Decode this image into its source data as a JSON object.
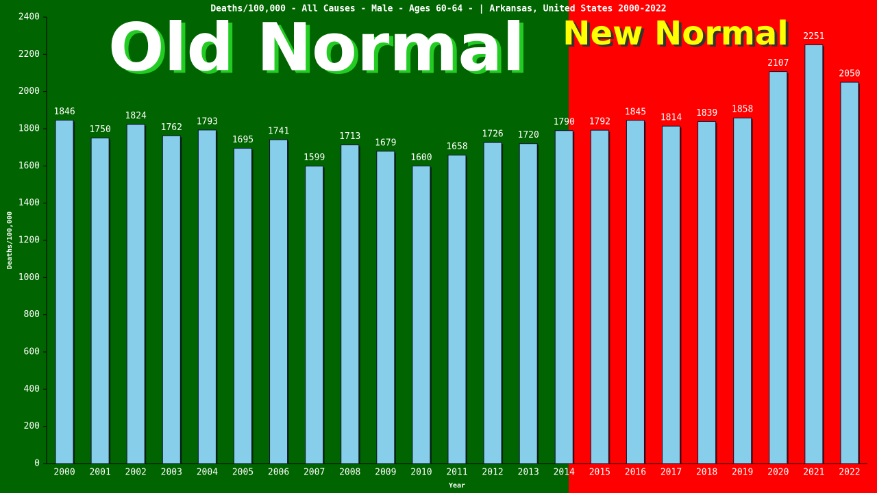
{
  "chart_data": {
    "type": "bar",
    "title": "Deaths/100,000 - All Causes - Male - Ages 60-64 -  | Arkansas, United States 2000-2022",
    "annotations": [
      "Old Normal",
      "New Normal"
    ],
    "x_label": "Year",
    "y_label": "Deaths/100,000",
    "categories": [
      "2000",
      "2001",
      "2002",
      "2003",
      "2004",
      "2005",
      "2006",
      "2007",
      "2008",
      "2009",
      "2010",
      "2011",
      "2012",
      "2013",
      "2014",
      "2015",
      "2016",
      "2017",
      "2018",
      "2019",
      "2020",
      "2021",
      "2022"
    ],
    "values": [
      1846,
      1750,
      1824,
      1762,
      1793,
      1695,
      1741,
      1599,
      1713,
      1679,
      1600,
      1658,
      1726,
      1720,
      1790,
      1792,
      1845,
      1814,
      1839,
      1858,
      2107,
      2251,
      2050
    ],
    "color": "#87ceeb",
    "ylim": [
      0,
      2400
    ],
    "yticks": [
      0,
      200,
      400,
      600,
      800,
      1000,
      1200,
      1400,
      1600,
      1800,
      2000,
      2200,
      2400
    ]
  }
}
